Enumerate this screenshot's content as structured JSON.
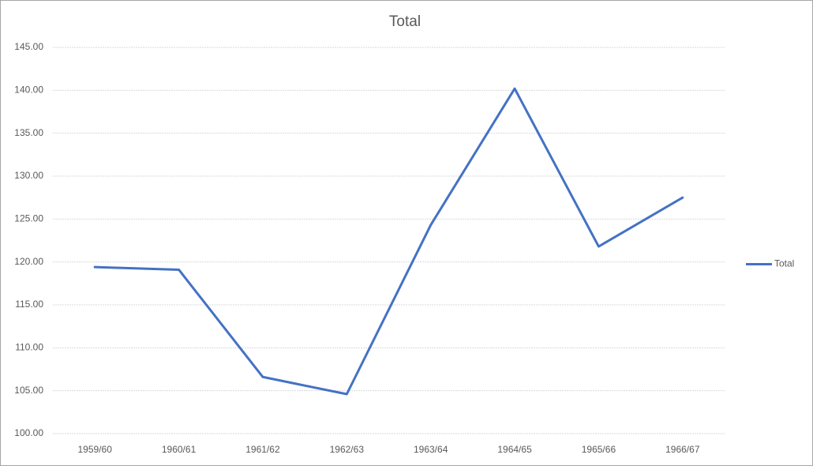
{
  "chart_data": {
    "type": "line",
    "title": "Total",
    "categories": [
      "1959/60",
      "1960/61",
      "1961/62",
      "1962/63",
      "1963/64",
      "1964/65",
      "1965/66",
      "1966/67"
    ],
    "series": [
      {
        "name": "Total",
        "color": "#4472c4",
        "values": [
          119.4,
          119.1,
          106.6,
          104.6,
          124.3,
          140.2,
          121.8,
          127.5
        ]
      }
    ],
    "ylim": [
      100,
      145
    ],
    "yticks": [
      {
        "value": 100,
        "label": "100.00"
      },
      {
        "value": 105,
        "label": "105.00"
      },
      {
        "value": 110,
        "label": "110.00"
      },
      {
        "value": 115,
        "label": "115.00"
      },
      {
        "value": 120,
        "label": "120.00"
      },
      {
        "value": 125,
        "label": "125.00"
      },
      {
        "value": 130,
        "label": "130.00"
      },
      {
        "value": 135,
        "label": "135.00"
      },
      {
        "value": 140,
        "label": "140.00"
      },
      {
        "value": 145,
        "label": "145.00"
      }
    ],
    "grid": true,
    "legend": "right"
  }
}
